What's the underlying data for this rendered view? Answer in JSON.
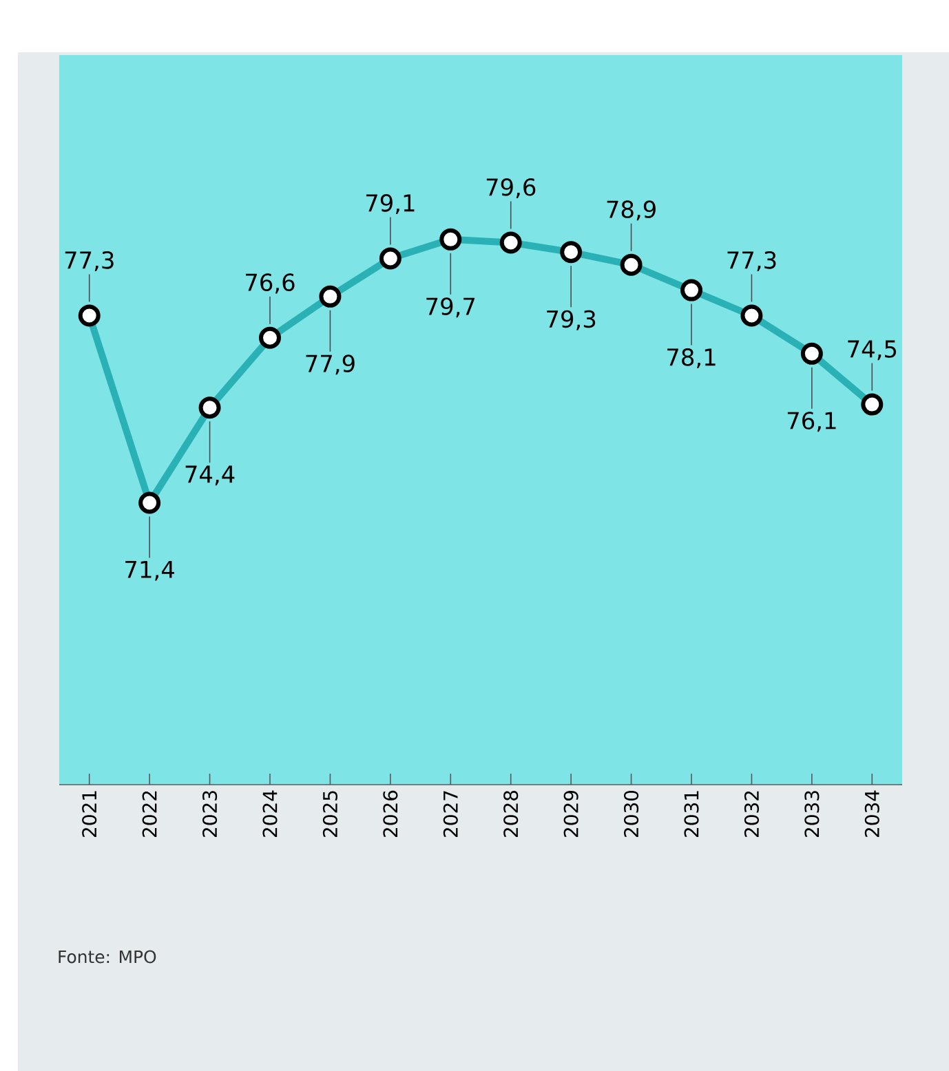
{
  "chart_data": {
    "type": "line",
    "categories": [
      "2021",
      "2022",
      "2023",
      "2024",
      "2025",
      "2026",
      "2027",
      "2028",
      "2029",
      "2030",
      "2031",
      "2032",
      "2033",
      "2034"
    ],
    "series": [
      {
        "color": "#2ab1b5",
        "values": [
          77.3,
          71.4,
          74.4,
          76.6,
          77.9,
          79.1,
          79.7,
          79.6,
          79.3,
          78.9,
          78.1,
          77.3,
          76.1,
          74.5
        ],
        "value_labels": [
          "77,3",
          "71,4",
          "74,4",
          "76,6",
          "77,9",
          "79,1",
          "79,7",
          "79,6",
          "79,3",
          "78,9",
          "78,1",
          "77,3",
          "76,1",
          "74,5"
        ]
      }
    ],
    "marker": "circle",
    "line_style": "solid",
    "grid": false,
    "annotations": [
      "Fonte: MPO"
    ]
  }
}
